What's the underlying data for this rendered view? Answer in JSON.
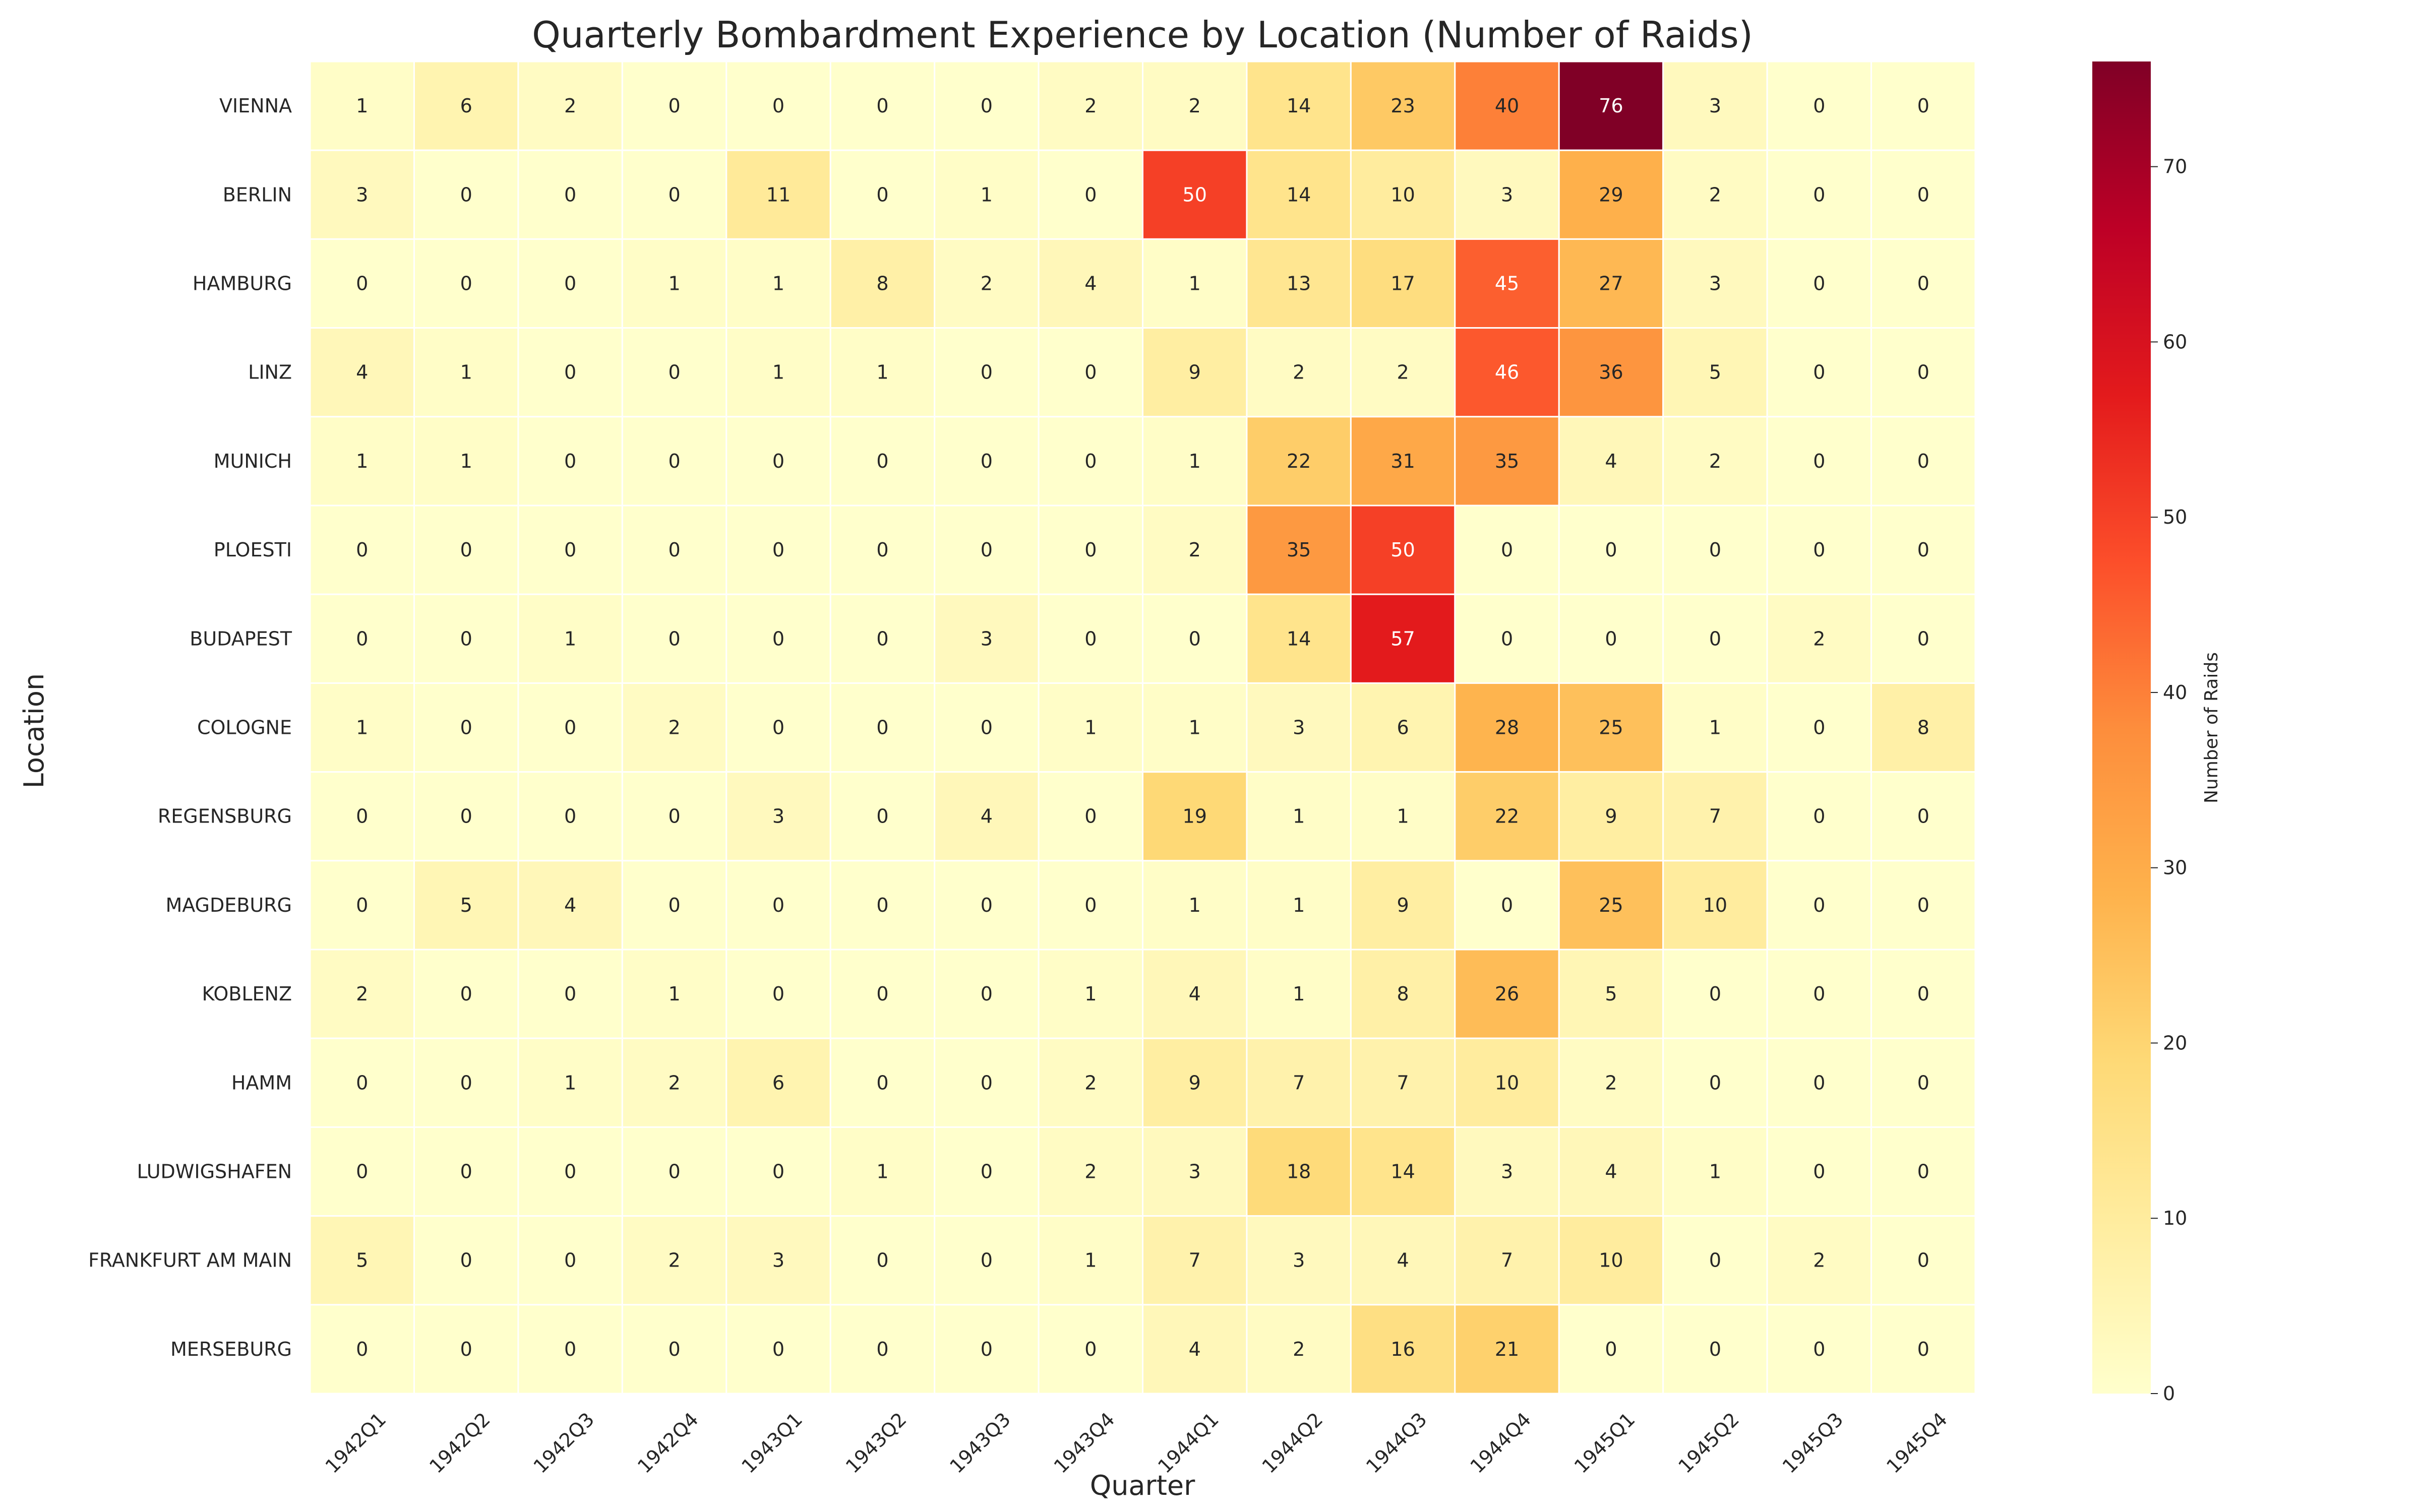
{
  "chart_data": {
    "type": "heatmap",
    "title": "Quarterly Bombardment Experience by Location (Number of Raids)",
    "xlabel": "Quarter",
    "ylabel": "Location",
    "colorbar_label": "Number of Raids",
    "colormap": "YlOrRd",
    "color_range": [
      0,
      76
    ],
    "colorbar_ticks": [
      0,
      10,
      20,
      30,
      40,
      50,
      60,
      70
    ],
    "x_categories": [
      "1942Q1",
      "1942Q2",
      "1942Q3",
      "1942Q4",
      "1943Q1",
      "1943Q2",
      "1943Q3",
      "1943Q4",
      "1944Q1",
      "1944Q2",
      "1944Q3",
      "1944Q4",
      "1945Q1",
      "1945Q2",
      "1945Q3",
      "1945Q4"
    ],
    "y_categories": [
      "VIENNA",
      "BERLIN",
      "HAMBURG",
      "LINZ",
      "MUNICH",
      "PLOESTI",
      "BUDAPEST",
      "COLOGNE",
      "REGENSBURG",
      "MAGDEBURG",
      "KOBLENZ",
      "HAMM",
      "LUDWIGSHAFEN",
      "FRANKFURT AM MAIN",
      "MERSEBURG"
    ],
    "values": [
      [
        1,
        6,
        2,
        0,
        0,
        0,
        0,
        2,
        2,
        14,
        23,
        40,
        76,
        3,
        0,
        0
      ],
      [
        3,
        0,
        0,
        0,
        11,
        0,
        1,
        0,
        50,
        14,
        10,
        3,
        29,
        2,
        0,
        0
      ],
      [
        0,
        0,
        0,
        1,
        1,
        8,
        2,
        4,
        1,
        13,
        17,
        45,
        27,
        3,
        0,
        0
      ],
      [
        4,
        1,
        0,
        0,
        1,
        1,
        0,
        0,
        9,
        2,
        2,
        46,
        36,
        5,
        0,
        0
      ],
      [
        1,
        1,
        0,
        0,
        0,
        0,
        0,
        0,
        1,
        22,
        31,
        35,
        4,
        2,
        0,
        0
      ],
      [
        0,
        0,
        0,
        0,
        0,
        0,
        0,
        0,
        2,
        35,
        50,
        0,
        0,
        0,
        0,
        0
      ],
      [
        0,
        0,
        1,
        0,
        0,
        0,
        3,
        0,
        0,
        14,
        57,
        0,
        0,
        0,
        2,
        0
      ],
      [
        1,
        0,
        0,
        2,
        0,
        0,
        0,
        1,
        1,
        3,
        6,
        28,
        25,
        1,
        0,
        8
      ],
      [
        0,
        0,
        0,
        0,
        3,
        0,
        4,
        0,
        19,
        1,
        1,
        22,
        9,
        7,
        0,
        0
      ],
      [
        0,
        5,
        4,
        0,
        0,
        0,
        0,
        0,
        1,
        1,
        9,
        0,
        25,
        10,
        0,
        0
      ],
      [
        2,
        0,
        0,
        1,
        0,
        0,
        0,
        1,
        4,
        1,
        8,
        26,
        5,
        0,
        0,
        0
      ],
      [
        0,
        0,
        1,
        2,
        6,
        0,
        0,
        2,
        9,
        7,
        7,
        10,
        2,
        0,
        0,
        0
      ],
      [
        0,
        0,
        0,
        0,
        0,
        1,
        0,
        2,
        3,
        18,
        14,
        3,
        4,
        1,
        0,
        0
      ],
      [
        5,
        0,
        0,
        2,
        3,
        0,
        0,
        1,
        7,
        3,
        4,
        7,
        10,
        0,
        2,
        0
      ],
      [
        0,
        0,
        0,
        0,
        0,
        0,
        0,
        0,
        4,
        2,
        16,
        21,
        0,
        0,
        0,
        0
      ]
    ]
  }
}
